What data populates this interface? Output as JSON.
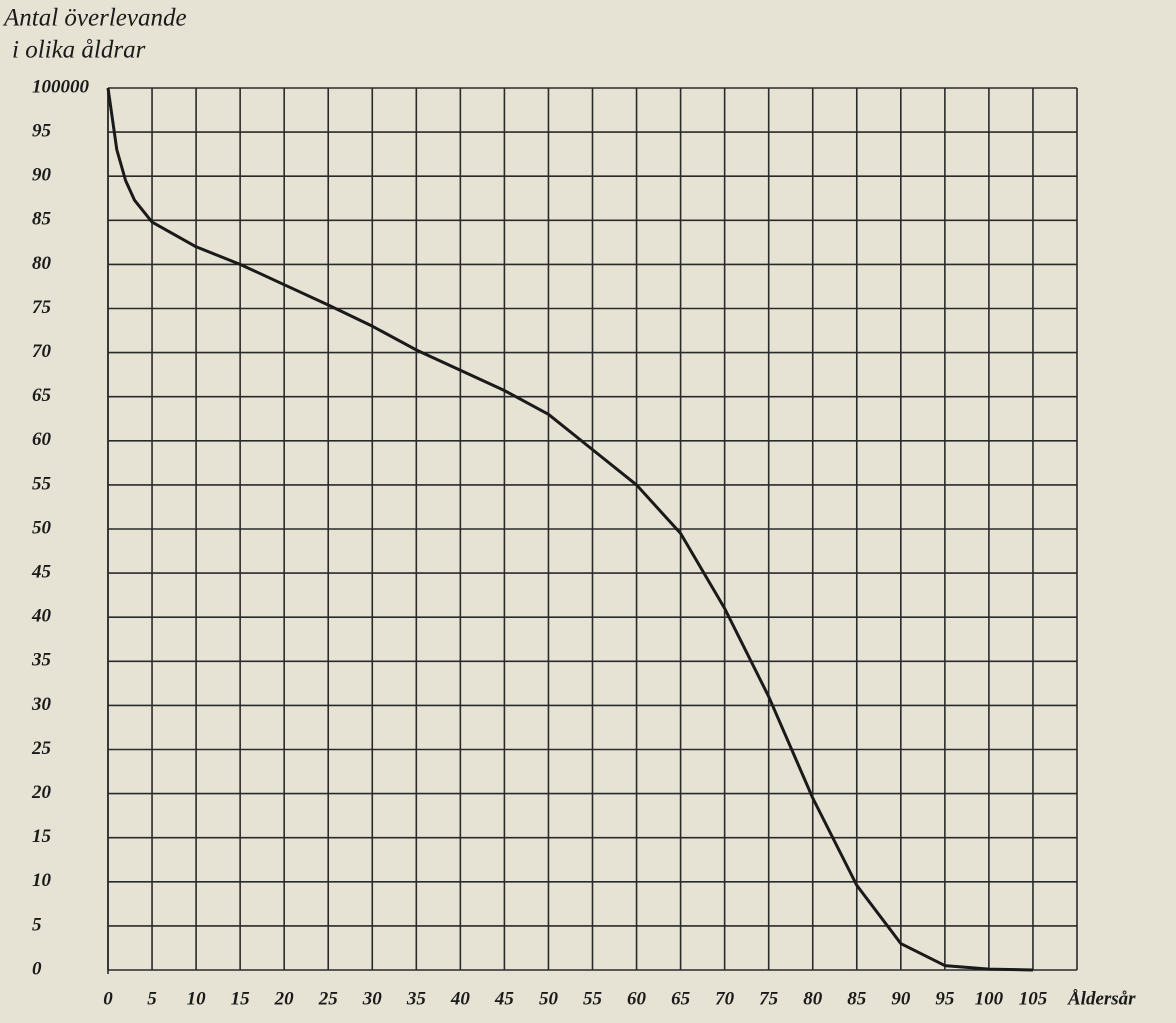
{
  "chart_data": {
    "type": "line",
    "title": [
      "Antal överlevande",
      "i olika åldrar"
    ],
    "x_label": "Åldersår",
    "series": [
      {
        "color": "#1a1a1a",
        "x": [
          0,
          1,
          2,
          3,
          5,
          10,
          15,
          20,
          25,
          30,
          35,
          40,
          45,
          50,
          55,
          60,
          65,
          70,
          75,
          80,
          85,
          90,
          95,
          100,
          105
        ],
        "values": [
          100000,
          93000,
          89500,
          87300,
          84800,
          82000,
          80000,
          77700,
          75400,
          73000,
          70300,
          68000,
          65700,
          63000,
          59000,
          55000,
          49500,
          41000,
          31000,
          19500,
          9600,
          3000,
          500,
          100,
          0
        ]
      }
    ],
    "xlim": [
      0,
      110
    ],
    "xticks": [
      0,
      5,
      10,
      15,
      20,
      25,
      30,
      35,
      40,
      45,
      50,
      55,
      60,
      65,
      70,
      75,
      80,
      85,
      90,
      95,
      100,
      105
    ],
    "ylim": [
      0,
      100000
    ],
    "yticks": [
      0,
      {
        "value": 5000,
        "label": "5"
      },
      {
        "value": 10000,
        "label": "10"
      },
      {
        "value": 15000,
        "label": "15"
      },
      {
        "value": 20000,
        "label": "20"
      },
      {
        "value": 25000,
        "label": "25"
      },
      {
        "value": 30000,
        "label": "30"
      },
      {
        "value": 35000,
        "label": "35"
      },
      {
        "value": 40000,
        "label": "40"
      },
      {
        "value": 45000,
        "label": "45"
      },
      {
        "value": 50000,
        "label": "50"
      },
      {
        "value": 55000,
        "label": "55"
      },
      {
        "value": 60000,
        "label": "60"
      },
      {
        "value": 65000,
        "label": "65"
      },
      {
        "value": 70000,
        "label": "70"
      },
      {
        "value": 75000,
        "label": "75"
      },
      {
        "value": 80000,
        "label": "80"
      },
      {
        "value": 85000,
        "label": "85"
      },
      {
        "value": 90000,
        "label": "90"
      },
      {
        "value": 95000,
        "label": "95"
      },
      100000
    ],
    "grid": true
  }
}
